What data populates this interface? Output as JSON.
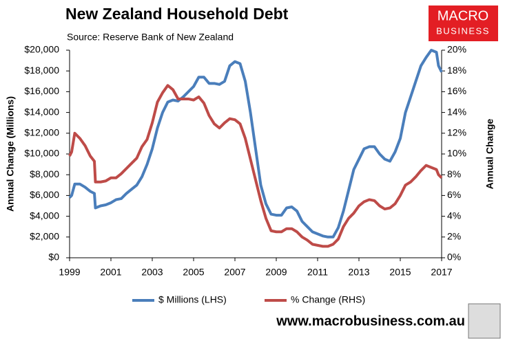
{
  "chart_data": {
    "type": "line",
    "title": "New Zealand Household Debt",
    "subtitle": "Source: Reserve Bank of New Zealand",
    "y_label": "Annual Change (Millions)",
    "y2_label": "Annual Change",
    "x": [
      1999.0,
      1999.1,
      1999.25,
      1999.5,
      1999.75,
      2000.0,
      2000.2,
      2000.25,
      2000.5,
      2000.75,
      2001.0,
      2001.25,
      2001.5,
      2001.75,
      2002.0,
      2002.25,
      2002.5,
      2002.75,
      2003.0,
      2003.25,
      2003.5,
      2003.75,
      2004.0,
      2004.25,
      2004.5,
      2004.75,
      2005.0,
      2005.25,
      2005.5,
      2005.75,
      2006.0,
      2006.25,
      2006.5,
      2006.75,
      2007.0,
      2007.25,
      2007.5,
      2007.75,
      2008.0,
      2008.25,
      2008.5,
      2008.75,
      2009.0,
      2009.25,
      2009.5,
      2009.75,
      2010.0,
      2010.25,
      2010.5,
      2010.75,
      2011.0,
      2011.25,
      2011.5,
      2011.75,
      2012.0,
      2012.25,
      2012.5,
      2012.75,
      2013.0,
      2013.25,
      2013.5,
      2013.75,
      2014.0,
      2014.25,
      2014.5,
      2014.75,
      2015.0,
      2015.25,
      2015.5,
      2015.75,
      2016.0,
      2016.25,
      2016.5,
      2016.75,
      2016.85,
      2017.0
    ],
    "series": [
      {
        "name": "$ Millions (LHS)",
        "color": "#4a7ebb",
        "values": [
          5800,
          6000,
          7100,
          7100,
          6800,
          6400,
          6200,
          4800,
          5000,
          5100,
          5300,
          5600,
          5700,
          6200,
          6600,
          7000,
          7800,
          9000,
          10500,
          12500,
          14000,
          15000,
          15200,
          15100,
          15500,
          16000,
          16500,
          17400,
          17400,
          16800,
          16800,
          16700,
          17000,
          18500,
          18900,
          18700,
          17000,
          14000,
          10500,
          7000,
          5200,
          4200,
          4100,
          4100,
          4800,
          4900,
          4500,
          3500,
          3000,
          2500,
          2300,
          2100,
          2000,
          2000,
          2900,
          4500,
          6500,
          8500,
          9500,
          10500,
          10700,
          10700,
          10000,
          9500,
          9300,
          10200,
          11500,
          14000,
          15500,
          17000,
          18500,
          19300,
          20000,
          19800,
          18500,
          17900
        ]
      },
      {
        "name": "% Change (RHS)",
        "color": "#be4b48",
        "axis": "y2",
        "values": [
          9.8,
          10.2,
          12.0,
          11.5,
          10.8,
          9.8,
          9.3,
          7.3,
          7.3,
          7.4,
          7.7,
          7.7,
          8.1,
          8.6,
          9.1,
          9.6,
          10.7,
          11.4,
          13.0,
          15.0,
          15.9,
          16.6,
          16.2,
          15.3,
          15.3,
          15.3,
          15.2,
          15.5,
          14.9,
          13.7,
          12.9,
          12.5,
          13.0,
          13.4,
          13.3,
          12.9,
          11.5,
          9.5,
          7.5,
          5.5,
          3.8,
          2.6,
          2.5,
          2.5,
          2.8,
          2.8,
          2.5,
          2.0,
          1.7,
          1.3,
          1.2,
          1.1,
          1.1,
          1.3,
          1.8,
          3.0,
          3.8,
          4.3,
          5.0,
          5.4,
          5.6,
          5.5,
          5.0,
          4.7,
          4.8,
          5.2,
          6.0,
          7.0,
          7.3,
          7.8,
          8.4,
          8.9,
          8.7,
          8.5,
          8.0,
          7.7
        ]
      }
    ],
    "xlim": [
      1999,
      2017
    ],
    "xticks": [
      1999,
      2001,
      2003,
      2005,
      2007,
      2009,
      2011,
      2013,
      2015,
      2017
    ],
    "ylim": [
      0,
      20000
    ],
    "yticks": [
      {
        "value": 0,
        "label": "$0"
      },
      {
        "value": 2000,
        "label": "$2,000"
      },
      {
        "value": 4000,
        "label": "$4,000"
      },
      {
        "value": 6000,
        "label": "$6,000"
      },
      {
        "value": 8000,
        "label": "$8,000"
      },
      {
        "value": 10000,
        "label": "$10,000"
      },
      {
        "value": 12000,
        "label": "$12,000"
      },
      {
        "value": 14000,
        "label": "$14,000"
      },
      {
        "value": 16000,
        "label": "$16,000"
      },
      {
        "value": 18000,
        "label": "$18,000"
      },
      {
        "value": 20000,
        "label": "$20,000"
      }
    ],
    "y2lim": [
      0,
      20
    ],
    "y2ticks": [
      {
        "value": 0,
        "label": "0%"
      },
      {
        "value": 2,
        "label": "2%"
      },
      {
        "value": 4,
        "label": "4%"
      },
      {
        "value": 6,
        "label": "6%"
      },
      {
        "value": 8,
        "label": "8%"
      },
      {
        "value": 10,
        "label": "10%"
      },
      {
        "value": 12,
        "label": "12%"
      },
      {
        "value": 14,
        "label": "14%"
      },
      {
        "value": 16,
        "label": "16%"
      },
      {
        "value": 18,
        "label": "18%"
      },
      {
        "value": 20,
        "label": "20%"
      }
    ],
    "grid": false,
    "legend": "bottom"
  },
  "branding": {
    "logo_top": "MACRO",
    "logo_bottom": "BUSINESS",
    "website": "www.macrobusiness.com.au"
  }
}
